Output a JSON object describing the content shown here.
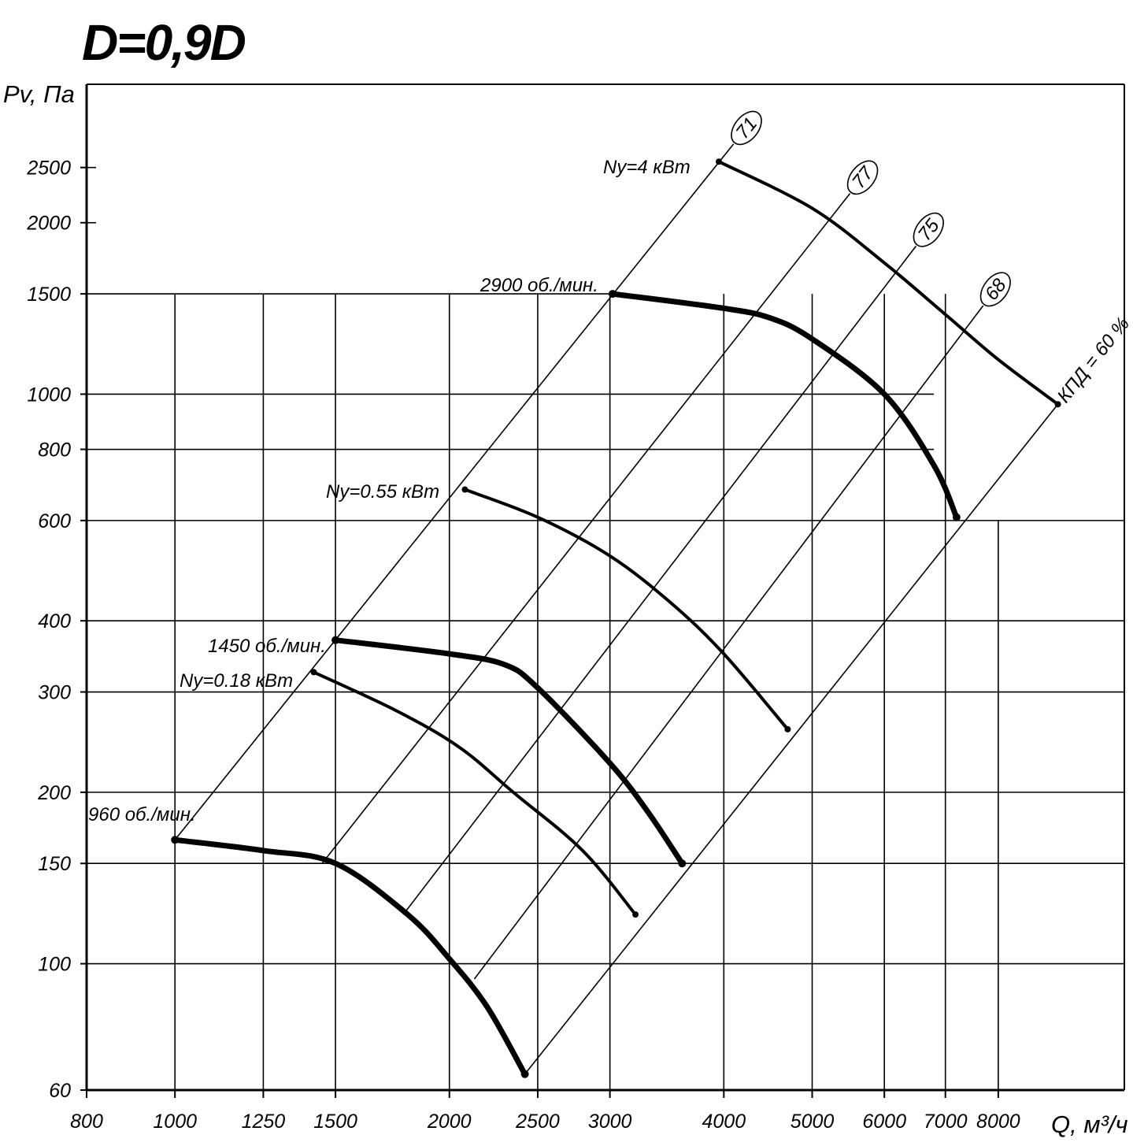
{
  "chart_data": {
    "type": "line",
    "title": "D=0,9D",
    "xlabel": "Q, м³/ч",
    "ylabel": "Pv, Па",
    "xscale": "log",
    "yscale": "log",
    "xlim": [
      800,
      11000
    ],
    "ylim": [
      60,
      3500
    ],
    "x_ticks": [
      800,
      1000,
      1250,
      1500,
      2000,
      2500,
      3000,
      4000,
      5000,
      6000,
      7000,
      8000
    ],
    "y_ticks": [
      60,
      100,
      150,
      200,
      300,
      400,
      600,
      800,
      1000,
      1500,
      2000,
      2500
    ],
    "grid": true,
    "series": [
      {
        "name": "960 об./мин.",
        "points": [
          [
            1000,
            165
          ],
          [
            1250,
            158
          ],
          [
            1500,
            150
          ],
          [
            1800,
            122
          ],
          [
            2000,
            102
          ],
          [
            2200,
            84
          ],
          [
            2420,
            64
          ]
        ]
      },
      {
        "name": "1450 об./мин.",
        "points": [
          [
            1500,
            370
          ],
          [
            2000,
            350
          ],
          [
            2300,
            335
          ],
          [
            2500,
            305
          ],
          [
            3000,
            225
          ],
          [
            3300,
            185
          ],
          [
            3600,
            150
          ]
        ]
      },
      {
        "name": "2900 об./мин.",
        "points": [
          [
            3020,
            1500
          ],
          [
            4000,
            1415
          ],
          [
            4500,
            1360
          ],
          [
            5000,
            1250
          ],
          [
            6000,
            1000
          ],
          [
            6800,
            750
          ],
          [
            7200,
            608
          ]
        ]
      }
    ],
    "power_curves": [
      {
        "label": "Ny=0.18 кВт",
        "points": [
          [
            1420,
            325
          ],
          [
            1750,
            278
          ],
          [
            2050,
            240
          ],
          [
            2350,
            200
          ],
          [
            2800,
            158
          ],
          [
            3200,
            122
          ]
        ]
      },
      {
        "label": "Ny=0.55 кВт",
        "points": [
          [
            2080,
            680
          ],
          [
            2500,
            608
          ],
          [
            3000,
            520
          ],
          [
            3500,
            430
          ],
          [
            4000,
            350
          ],
          [
            4700,
            258
          ]
        ]
      },
      {
        "label": "Ny=4 кВт",
        "points": [
          [
            3950,
            2560
          ],
          [
            5000,
            2120
          ],
          [
            6000,
            1700
          ],
          [
            7000,
            1380
          ],
          [
            8000,
            1150
          ],
          [
            9300,
            960
          ]
        ]
      }
    ],
    "efficiency_lines": [
      {
        "label": "71",
        "points": [
          [
            1000,
            165
          ],
          [
            4100,
            2750
          ]
        ]
      },
      {
        "label": "77",
        "points": [
          [
            1450,
            150
          ],
          [
            5500,
            2250
          ]
        ]
      },
      {
        "label": "75",
        "points": [
          [
            1780,
            122
          ],
          [
            6500,
            1820
          ]
        ]
      },
      {
        "label": "68",
        "points": [
          [
            2130,
            94
          ],
          [
            7700,
            1430
          ]
        ]
      },
      {
        "label": "КПД = 60 %",
        "points": [
          [
            2420,
            64
          ],
          [
            9300,
            960
          ]
        ]
      }
    ],
    "annotations": [
      "960 об./мин.",
      "1450 об./мин.",
      "2900 об./мин.",
      "Ny=0.18 кВт",
      "Ny=0.55 кВт",
      "Ny=4 кВт"
    ]
  }
}
